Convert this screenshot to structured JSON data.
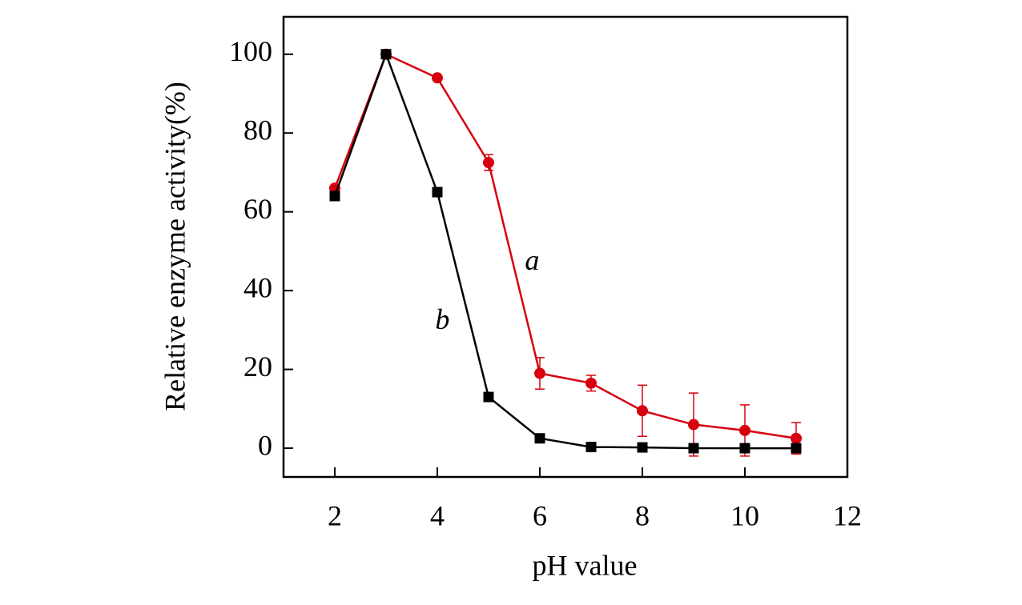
{
  "chart_data": {
    "type": "line",
    "x_label": "pH value",
    "y_label": "Relative enzyme activity(%)",
    "x": [
      2,
      3,
      4,
      5,
      6,
      7,
      8,
      9,
      10,
      11
    ],
    "series": [
      {
        "name": "a",
        "color": "#d7000f",
        "marker": "circle",
        "values": [
          66,
          100,
          94,
          72.5,
          19,
          16.5,
          9.5,
          6,
          4.5,
          2.5
        ],
        "errors": [
          0.5,
          0.5,
          0.5,
          2,
          4,
          2,
          6.5,
          8,
          6.5,
          4
        ]
      },
      {
        "name": "b",
        "color": "#000000",
        "marker": "square",
        "values": [
          64,
          100,
          65,
          13,
          2.5,
          0.3,
          0.2,
          0,
          0,
          0
        ]
      }
    ],
    "xlim": [
      1,
      12
    ],
    "ylim": [
      -7.3,
      109.5
    ],
    "xticks": [
      2,
      4,
      6,
      8,
      10,
      12
    ],
    "yticks": [
      0,
      20,
      40,
      60,
      80,
      100
    ]
  }
}
